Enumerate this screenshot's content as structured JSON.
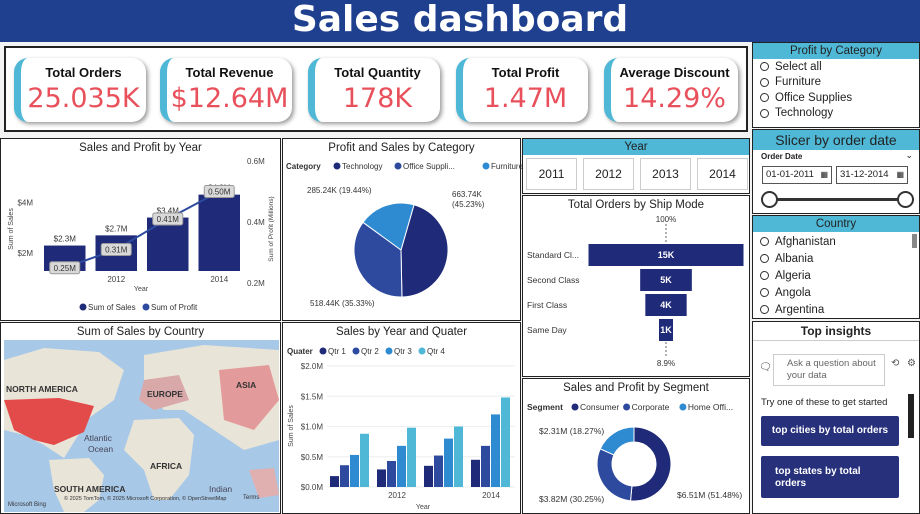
{
  "header": {
    "title": "Sales dashboard"
  },
  "kpis": [
    {
      "title": "Total Orders",
      "value": "25.035K"
    },
    {
      "title": "Total Revenue",
      "value": "$12.64M"
    },
    {
      "title": "Total Quantity",
      "value": "178K"
    },
    {
      "title": "Total Profit",
      "value": "1.47M"
    },
    {
      "title": "Average Discount",
      "value": "14.29%"
    }
  ],
  "profit_by_category": {
    "title": "Profit by Category",
    "items": [
      "Select all",
      "Furniture",
      "Office Supplies",
      "Technology"
    ]
  },
  "date_slicer": {
    "title": "Slicer by order date",
    "label": "Order Date",
    "start": "01-01-2011",
    "end": "31-12-2014"
  },
  "country_slicer": {
    "title": "Country",
    "items": [
      "Afghanistan",
      "Albania",
      "Algeria",
      "Angola",
      "Argentina"
    ]
  },
  "insights": {
    "title": "Top insights",
    "placeholder": "Ask a question about your data",
    "hint": "Try one of these to get started",
    "buttons": [
      "top cities by total orders",
      "top states by total orders"
    ]
  },
  "year_slicer": {
    "title": "Year",
    "years": [
      "2011",
      "2012",
      "2013",
      "2014"
    ]
  },
  "map": {
    "title": "Sum of Sales by Country",
    "labels": {
      "na": "NORTH AMERICA",
      "eu": "EUROPE",
      "asia": "ASIA",
      "atlantic": "Atlantic",
      "ocean": "Ocean",
      "africa": "AFRICA",
      "sa": "SOUTH AMERICA",
      "indian": "Indian"
    },
    "attribution": "© 2025 TomTom, © 2025 Microsoft Corporation, © OpenStreetMap",
    "terms": "Terms",
    "brand": "Microsoft Bing"
  },
  "colors": {
    "dark": "#1f2a78",
    "mid": "#2d4a9e",
    "light": "#2f8bd1",
    "accent": "#4fb8d6",
    "kpi_value": "#e8505b",
    "header": "#1f3f8f"
  },
  "chart_data": [
    {
      "type": "bar",
      "title": "Sales and Profit by Year",
      "xlabel": "Year",
      "ylabel": "Sum of Sales",
      "y2label": "Sum of Profit (Millions)",
      "categories": [
        "2011",
        "2012",
        "2013",
        "2014"
      ],
      "series": [
        {
          "name": "Sum of Sales",
          "values": [
            2.3,
            2.7,
            3.4,
            4.3
          ],
          "labels": [
            "$2.3M",
            "$2.7M",
            "$3.4M",
            "$4.3M"
          ]
        },
        {
          "name": "Sum of Profit",
          "values": [
            0.25,
            0.31,
            0.41,
            0.5
          ],
          "labels": [
            "0.25M",
            "0.31M",
            "0.41M",
            "0.50M"
          ]
        }
      ],
      "yticks": [
        "$2M",
        "$4M"
      ],
      "y2ticks": [
        "0.2M",
        "0.4M",
        "0.6M"
      ],
      "xticks": [
        "2012",
        "2014"
      ],
      "ylim": [
        1.3,
        4.6
      ],
      "y2lim": [
        0.2,
        0.6
      ]
    },
    {
      "type": "pie",
      "title": "Profit and Sales by Category",
      "legend_title": "Category",
      "legend": [
        "Technology",
        "Office Suppli...",
        "Furniture"
      ],
      "slices": [
        {
          "name": "Technology",
          "value": 663.74,
          "label": "663.74K",
          "pct": "(45.23%)"
        },
        {
          "name": "Office Supplies",
          "value": 518.44,
          "label": "518.44K (35.33%)"
        },
        {
          "name": "Furniture",
          "value": 285.24,
          "label": "285.24K (19.44%)"
        }
      ]
    },
    {
      "type": "bar",
      "title": "Total Orders by Ship Mode",
      "categories": [
        "Standard Cl...",
        "Second Class",
        "First Class",
        "Same Day"
      ],
      "values": [
        15,
        5,
        4,
        1
      ],
      "labels": [
        "15K",
        "5K",
        "4K",
        "1K"
      ],
      "top_pct": "100%",
      "bottom_pct": "8.9%"
    },
    {
      "type": "bar",
      "title": "Sales by Year and Quater",
      "legend_title": "Quater",
      "xlabel": "Year",
      "ylabel": "Sum of Sales",
      "categories": [
        "2011",
        "2012",
        "2013",
        "2014"
      ],
      "series": [
        {
          "name": "Qtr 1",
          "values": [
            0.18,
            0.29,
            0.35,
            0.45
          ]
        },
        {
          "name": "Qtr 2",
          "values": [
            0.36,
            0.43,
            0.52,
            0.68
          ]
        },
        {
          "name": "Qtr 3",
          "values": [
            0.53,
            0.68,
            0.8,
            1.2
          ]
        },
        {
          "name": "Qtr 4",
          "values": [
            0.88,
            0.98,
            1.0,
            1.48
          ]
        }
      ],
      "yticks": [
        "$0.0M",
        "$0.5M",
        "$1.0M",
        "$1.5M",
        "$2.0M"
      ],
      "xticks": [
        "2012",
        "2014"
      ],
      "ylim": [
        0,
        2.0
      ]
    },
    {
      "type": "pie",
      "title": "Sales and Profit by Segment",
      "legend_title": "Segment",
      "legend": [
        "Consumer",
        "Corporate",
        "Home Offi..."
      ],
      "slices": [
        {
          "name": "Consumer",
          "value": 6.51,
          "label": "$6.51M (51.48%)"
        },
        {
          "name": "Corporate",
          "value": 3.82,
          "label": "$3.82M (30.25%)"
        },
        {
          "name": "Home Office",
          "value": 2.31,
          "label": "$2.31M (18.27%)"
        }
      ]
    }
  ]
}
